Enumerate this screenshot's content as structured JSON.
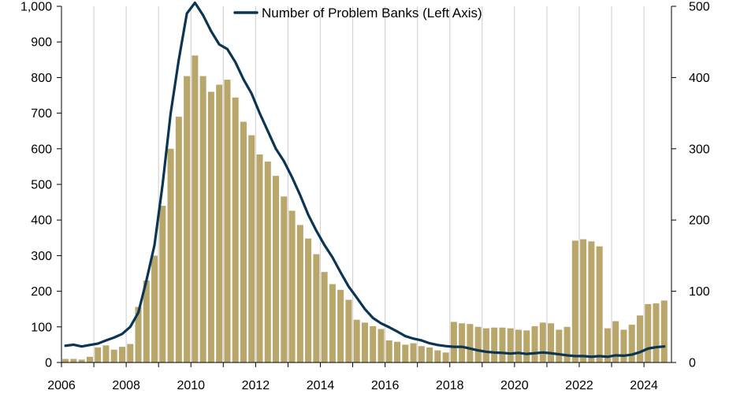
{
  "chart_data": {
    "type": "bar+line",
    "title": "",
    "legend": {
      "entries": [
        "Number of Problem Banks (Left Axis)"
      ],
      "placement": "top-center"
    },
    "colors": {
      "bar": "#b8a66a",
      "line": "#0b3552",
      "vgrid": "#d4d4d4",
      "axis": "#000000"
    },
    "grid": {
      "vertical": true,
      "horizontal": false
    },
    "x_axis": {
      "ticks": [
        "2006",
        "2008",
        "2010",
        "2012",
        "2014",
        "2016",
        "2018",
        "2020",
        "2022",
        "2024"
      ],
      "range": [
        2006.0,
        2024.85
      ]
    },
    "y_left": {
      "range": [
        0,
        1000
      ],
      "ticks": [
        "0",
        "100",
        "200",
        "300",
        "400",
        "500",
        "600",
        "700",
        "800",
        "900",
        "1,000"
      ]
    },
    "y_right": {
      "range": [
        0,
        500
      ],
      "ticks": [
        "0",
        "100",
        "200",
        "300",
        "400",
        "500"
      ]
    },
    "series": [
      {
        "type": "bar",
        "axis": "right",
        "start_year": 2006,
        "points_per_year": 4,
        "values": [
          5,
          5,
          4,
          8,
          21,
          24,
          18,
          22,
          26,
          78,
          115,
          150,
          220,
          300,
          345,
          402,
          431,
          402,
          380,
          390,
          397,
          372,
          338,
          319,
          292,
          282,
          262,
          233,
          213,
          193,
          174,
          152,
          127,
          110,
          102,
          88,
          60,
          56,
          51,
          47,
          31,
          29,
          25,
          27,
          23,
          21,
          17,
          14,
          57,
          55,
          54,
          50,
          48,
          49,
          49,
          48,
          46,
          45,
          51,
          56,
          55,
          46,
          50,
          171,
          173,
          170,
          163,
          48,
          58,
          46,
          53,
          66,
          82,
          83,
          87
        ]
      },
      {
        "type": "line",
        "axis": "left",
        "name": "Number of Problem Banks (Left Axis)",
        "start_year": 2006,
        "points_per_year": 4,
        "values": [
          47,
          50,
          45,
          49,
          53,
          62,
          70,
          80,
          100,
          140,
          230,
          330,
          500,
          700,
          850,
          980,
          1010,
          975,
          930,
          893,
          880,
          843,
          795,
          755,
          700,
          650,
          600,
          565,
          520,
          470,
          415,
          370,
          330,
          295,
          253,
          213,
          182,
          150,
          125,
          110,
          99,
          87,
          74,
          67,
          62,
          54,
          49,
          46,
          44,
          44,
          39,
          34,
          30,
          28,
          27,
          25,
          27,
          24,
          26,
          28,
          26,
          23,
          20,
          18,
          18,
          16,
          18,
          16,
          20,
          19,
          22,
          29,
          39,
          43,
          45
        ]
      }
    ]
  }
}
